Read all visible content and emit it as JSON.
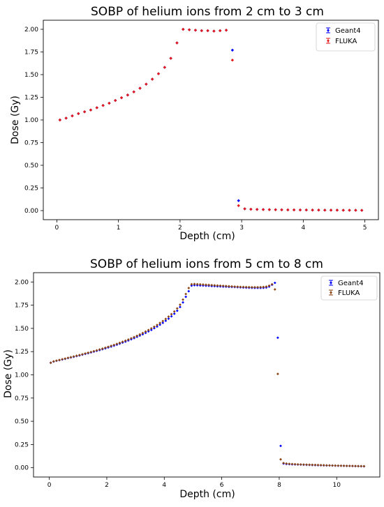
{
  "chart_data": [
    {
      "type": "scatter",
      "title": "SOBP of helium ions from 2 cm to 3 cm",
      "xlabel": "Depth (cm)",
      "ylabel": "Dose (Gy)",
      "xlim": [
        -0.22,
        5.22
      ],
      "ylim": [
        -0.1,
        2.1
      ],
      "xticks": [
        0,
        1,
        2,
        3,
        4,
        5
      ],
      "xtick_labels": [
        "0",
        "1",
        "2",
        "3",
        "4",
        "5"
      ],
      "yticks": [
        0,
        0.25,
        0.5,
        0.75,
        1.0,
        1.25,
        1.5,
        1.75,
        2.0
      ],
      "ytick_labels": [
        "0.00",
        "0.25",
        "0.50",
        "0.75",
        "1.00",
        "1.25",
        "1.50",
        "1.75",
        "2.00"
      ],
      "grid": false,
      "legend_position": "top-right",
      "series": [
        {
          "name": "Geant4",
          "color": "#0000ff",
          "x": [
            0.05,
            0.15,
            0.25,
            0.35,
            0.45,
            0.55,
            0.65,
            0.75,
            0.85,
            0.95,
            1.05,
            1.15,
            1.25,
            1.35,
            1.45,
            1.55,
            1.65,
            1.75,
            1.85,
            1.95,
            2.05,
            2.15,
            2.25,
            2.35,
            2.45,
            2.55,
            2.65,
            2.75,
            2.85,
            2.95,
            3.05,
            3.15,
            3.25,
            3.35,
            3.45,
            3.55,
            3.65,
            3.75,
            3.85,
            3.95,
            4.05,
            4.15,
            4.25,
            4.35,
            4.45,
            4.55,
            4.65,
            4.75,
            4.85,
            4.95
          ],
          "y": [
            1.0,
            1.02,
            1.045,
            1.07,
            1.09,
            1.11,
            1.135,
            1.16,
            1.185,
            1.215,
            1.245,
            1.275,
            1.31,
            1.35,
            1.395,
            1.45,
            1.51,
            1.58,
            1.68,
            1.85,
            2.0,
            1.995,
            1.99,
            1.985,
            1.985,
            1.98,
            1.985,
            1.99,
            1.77,
            0.11,
            0.02,
            0.015,
            0.013,
            0.012,
            0.011,
            0.01,
            0.009,
            0.008,
            0.008,
            0.007,
            0.007,
            0.006,
            0.006,
            0.005,
            0.005,
            0.005,
            0.004,
            0.004,
            0.004,
            0.003
          ]
        },
        {
          "name": "FLUKA",
          "color": "#e31a1c",
          "x": [
            0.05,
            0.15,
            0.25,
            0.35,
            0.45,
            0.55,
            0.65,
            0.75,
            0.85,
            0.95,
            1.05,
            1.15,
            1.25,
            1.35,
            1.45,
            1.55,
            1.65,
            1.75,
            1.85,
            1.95,
            2.05,
            2.15,
            2.25,
            2.35,
            2.45,
            2.55,
            2.65,
            2.75,
            2.85,
            2.95,
            3.05,
            3.15,
            3.25,
            3.35,
            3.45,
            3.55,
            3.65,
            3.75,
            3.85,
            3.95,
            4.05,
            4.15,
            4.25,
            4.35,
            4.45,
            4.55,
            4.65,
            4.75,
            4.85,
            4.95
          ],
          "y": [
            1.0,
            1.02,
            1.045,
            1.07,
            1.09,
            1.11,
            1.135,
            1.16,
            1.185,
            1.215,
            1.245,
            1.275,
            1.31,
            1.35,
            1.395,
            1.45,
            1.51,
            1.58,
            1.68,
            1.85,
            2.0,
            1.995,
            1.99,
            1.985,
            1.985,
            1.98,
            1.985,
            1.99,
            1.66,
            0.055,
            0.02,
            0.015,
            0.013,
            0.012,
            0.011,
            0.01,
            0.009,
            0.008,
            0.008,
            0.007,
            0.007,
            0.006,
            0.006,
            0.005,
            0.005,
            0.005,
            0.004,
            0.004,
            0.004,
            0.003
          ]
        }
      ]
    },
    {
      "type": "scatter",
      "title": "SOBP of helium ions from 5 cm to 8 cm",
      "xlabel": "Depth (cm)",
      "ylabel": "Dose (Gy)",
      "xlim": [
        -0.55,
        11.5
      ],
      "ylim": [
        -0.1,
        2.1
      ],
      "xticks": [
        0,
        2,
        4,
        6,
        8,
        10
      ],
      "xtick_labels": [
        "0",
        "2",
        "4",
        "6",
        "8",
        "10"
      ],
      "yticks": [
        0,
        0.25,
        0.5,
        0.75,
        1.0,
        1.25,
        1.5,
        1.75,
        2.0
      ],
      "ytick_labels": [
        "0.00",
        "0.25",
        "0.50",
        "0.75",
        "1.00",
        "1.25",
        "1.50",
        "1.75",
        "2.00"
      ],
      "grid": false,
      "legend_position": "top-right",
      "series": [
        {
          "name": "Geant4",
          "color": "#0000ff",
          "x": [
            0.05,
            0.15,
            0.25,
            0.35,
            0.45,
            0.55,
            0.65,
            0.75,
            0.85,
            0.95,
            1.05,
            1.15,
            1.25,
            1.35,
            1.45,
            1.55,
            1.65,
            1.75,
            1.85,
            1.95,
            2.05,
            2.15,
            2.25,
            2.35,
            2.45,
            2.55,
            2.65,
            2.75,
            2.85,
            2.95,
            3.05,
            3.15,
            3.25,
            3.35,
            3.45,
            3.55,
            3.65,
            3.75,
            3.85,
            3.95,
            4.05,
            4.15,
            4.25,
            4.35,
            4.45,
            4.55,
            4.65,
            4.75,
            4.85,
            4.95,
            5.05,
            5.15,
            5.25,
            5.35,
            5.45,
            5.55,
            5.65,
            5.75,
            5.85,
            5.95,
            6.05,
            6.15,
            6.25,
            6.35,
            6.45,
            6.55,
            6.65,
            6.75,
            6.85,
            6.95,
            7.05,
            7.15,
            7.25,
            7.35,
            7.45,
            7.55,
            7.65,
            7.75,
            7.85,
            7.95,
            8.05,
            8.15,
            8.25,
            8.35,
            8.45,
            8.55,
            8.65,
            8.75,
            8.85,
            8.95,
            9.05,
            9.15,
            9.25,
            9.35,
            9.45,
            9.55,
            9.65,
            9.75,
            9.85,
            9.95,
            10.05,
            10.15,
            10.25,
            10.35,
            10.45,
            10.55,
            10.65,
            10.75,
            10.85,
            10.95
          ],
          "y": [
            1.13,
            1.143,
            1.151,
            1.158,
            1.165,
            1.172,
            1.18,
            1.187,
            1.194,
            1.202,
            1.209,
            1.217,
            1.225,
            1.233,
            1.241,
            1.25,
            1.258,
            1.267,
            1.276,
            1.285,
            1.295,
            1.304,
            1.314,
            1.325,
            1.336,
            1.347,
            1.358,
            1.37,
            1.383,
            1.395,
            1.409,
            1.423,
            1.437,
            1.452,
            1.468,
            1.484,
            1.502,
            1.52,
            1.54,
            1.56,
            1.582,
            1.605,
            1.63,
            1.658,
            1.69,
            1.73,
            1.78,
            1.84,
            1.9,
            1.96,
            1.965,
            1.964,
            1.962,
            1.961,
            1.959,
            1.958,
            1.956,
            1.955,
            1.953,
            1.952,
            1.95,
            1.949,
            1.947,
            1.946,
            1.945,
            1.943,
            1.942,
            1.94,
            1.939,
            1.938,
            1.937,
            1.936,
            1.936,
            1.936,
            1.937,
            1.94,
            1.95,
            1.97,
            1.99,
            1.4,
            0.235,
            0.045,
            0.04,
            0.038,
            0.036,
            0.035,
            0.034,
            0.033,
            0.032,
            0.031,
            0.03,
            0.029,
            0.028,
            0.027,
            0.026,
            0.025,
            0.024,
            0.024,
            0.023,
            0.022,
            0.021,
            0.021,
            0.02,
            0.019,
            0.019,
            0.018,
            0.017,
            0.017,
            0.016,
            0.015
          ]
        },
        {
          "name": "FLUKA",
          "color": "#8b4513",
          "x": [
            0.05,
            0.15,
            0.25,
            0.35,
            0.45,
            0.55,
            0.65,
            0.75,
            0.85,
            0.95,
            1.05,
            1.15,
            1.25,
            1.35,
            1.45,
            1.55,
            1.65,
            1.75,
            1.85,
            1.95,
            2.05,
            2.15,
            2.25,
            2.35,
            2.45,
            2.55,
            2.65,
            2.75,
            2.85,
            2.95,
            3.05,
            3.15,
            3.25,
            3.35,
            3.45,
            3.55,
            3.65,
            3.75,
            3.85,
            3.95,
            4.05,
            4.15,
            4.25,
            4.35,
            4.45,
            4.55,
            4.65,
            4.75,
            4.85,
            4.95,
            5.05,
            5.15,
            5.25,
            5.35,
            5.45,
            5.55,
            5.65,
            5.75,
            5.85,
            5.95,
            6.05,
            6.15,
            6.25,
            6.35,
            6.45,
            6.55,
            6.65,
            6.75,
            6.85,
            6.95,
            7.05,
            7.15,
            7.25,
            7.35,
            7.45,
            7.55,
            7.65,
            7.75,
            7.85,
            7.95,
            8.05,
            8.15,
            8.25,
            8.35,
            8.45,
            8.55,
            8.65,
            8.75,
            8.85,
            8.95,
            9.05,
            9.15,
            9.25,
            9.35,
            9.45,
            9.55,
            9.65,
            9.75,
            9.85,
            9.95,
            10.05,
            10.15,
            10.25,
            10.35,
            10.45,
            10.55,
            10.65,
            10.75,
            10.85,
            10.95
          ],
          "y": [
            1.13,
            1.145,
            1.153,
            1.16,
            1.168,
            1.175,
            1.183,
            1.19,
            1.198,
            1.206,
            1.213,
            1.221,
            1.23,
            1.238,
            1.246,
            1.255,
            1.264,
            1.273,
            1.282,
            1.292,
            1.302,
            1.312,
            1.322,
            1.333,
            1.344,
            1.356,
            1.368,
            1.38,
            1.393,
            1.406,
            1.42,
            1.435,
            1.45,
            1.466,
            1.482,
            1.5,
            1.518,
            1.537,
            1.558,
            1.579,
            1.602,
            1.627,
            1.653,
            1.682,
            1.715,
            1.755,
            1.81,
            1.87,
            1.935,
            1.975,
            1.978,
            1.976,
            1.974,
            1.972,
            1.97,
            1.968,
            1.966,
            1.964,
            1.962,
            1.96,
            1.958,
            1.956,
            1.954,
            1.952,
            1.95,
            1.949,
            1.947,
            1.946,
            1.945,
            1.944,
            1.943,
            1.943,
            1.943,
            1.944,
            1.946,
            1.95,
            1.96,
            1.975,
            1.92,
            1.01,
            0.09,
            0.05,
            0.045,
            0.042,
            0.04,
            0.038,
            0.036,
            0.035,
            0.034,
            0.033,
            0.032,
            0.031,
            0.03,
            0.029,
            0.028,
            0.027,
            0.026,
            0.025,
            0.024,
            0.023,
            0.022,
            0.021,
            0.021,
            0.02,
            0.019,
            0.019,
            0.018,
            0.017,
            0.017,
            0.016
          ]
        }
      ]
    }
  ]
}
